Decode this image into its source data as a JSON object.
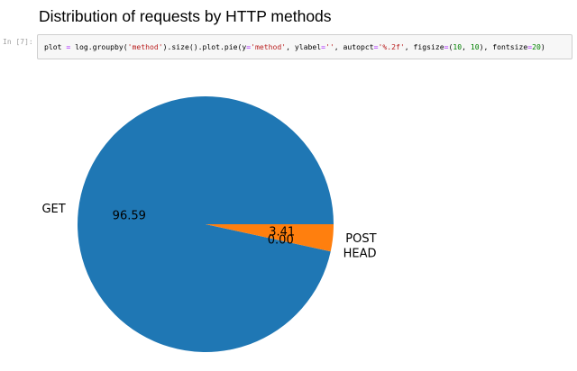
{
  "heading": "Distribution of requests by HTTP methods",
  "cell": {
    "prompt": "In [7]:",
    "code_tokens": [
      {
        "t": "plot",
        "c": "tk-name"
      },
      {
        "t": " = ",
        "c": "tk-op"
      },
      {
        "t": "log",
        "c": "tk-name"
      },
      {
        "t": ".",
        "c": "tk-punc"
      },
      {
        "t": "groupby",
        "c": "tk-name"
      },
      {
        "t": "(",
        "c": "tk-punc"
      },
      {
        "t": "'method'",
        "c": "tk-str"
      },
      {
        "t": ").",
        "c": "tk-punc"
      },
      {
        "t": "size",
        "c": "tk-name"
      },
      {
        "t": "().",
        "c": "tk-punc"
      },
      {
        "t": "plot",
        "c": "tk-name"
      },
      {
        "t": ".",
        "c": "tk-punc"
      },
      {
        "t": "pie",
        "c": "tk-name"
      },
      {
        "t": "(",
        "c": "tk-punc"
      },
      {
        "t": "y",
        "c": "tk-name"
      },
      {
        "t": "=",
        "c": "tk-op"
      },
      {
        "t": "'method'",
        "c": "tk-str"
      },
      {
        "t": ", ",
        "c": "tk-punc"
      },
      {
        "t": "ylabel",
        "c": "tk-name"
      },
      {
        "t": "=",
        "c": "tk-op"
      },
      {
        "t": "''",
        "c": "tk-str"
      },
      {
        "t": ", ",
        "c": "tk-punc"
      },
      {
        "t": "autopct",
        "c": "tk-name"
      },
      {
        "t": "=",
        "c": "tk-op"
      },
      {
        "t": "'%.2f'",
        "c": "tk-str"
      },
      {
        "t": ", ",
        "c": "tk-punc"
      },
      {
        "t": "figsize",
        "c": "tk-name"
      },
      {
        "t": "=",
        "c": "tk-op"
      },
      {
        "t": "(",
        "c": "tk-punc"
      },
      {
        "t": "10",
        "c": "tk-num"
      },
      {
        "t": ", ",
        "c": "tk-punc"
      },
      {
        "t": "10",
        "c": "tk-num"
      },
      {
        "t": "), ",
        "c": "tk-punc"
      },
      {
        "t": "fontsize",
        "c": "tk-name"
      },
      {
        "t": "=",
        "c": "tk-op"
      },
      {
        "t": "20",
        "c": "tk-num"
      },
      {
        "t": ")",
        "c": "tk-punc"
      }
    ]
  },
  "chart_data": {
    "type": "pie",
    "title": "",
    "slices": [
      {
        "label": "GET",
        "value": 96.59,
        "pct_label": "96.59",
        "color": "#1f77b4"
      },
      {
        "label": "HEAD",
        "value": 0.0,
        "pct_label": "0.00",
        "color": "#2ca02c"
      },
      {
        "label": "POST",
        "value": 3.41,
        "pct_label": "3.41",
        "color": "#ff7f0e"
      }
    ],
    "start_angle_deg": 0,
    "direction": "counterclockwise",
    "legend": "none"
  }
}
